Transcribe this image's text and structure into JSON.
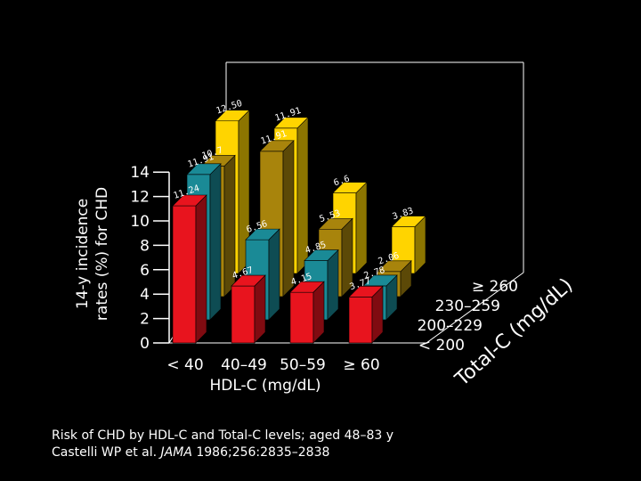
{
  "chart_data": {
    "type": "bar",
    "title": "",
    "ylabel": [
      "14-y incidence",
      "rates (%) for CHD"
    ],
    "xlabel": "HDL-C (mg/dL)",
    "zlabel": "Total-C (mg/dL)",
    "ylim": [
      0,
      14
    ],
    "yticks": [
      "0",
      "2",
      "4",
      "6",
      "8",
      "10",
      "12",
      "14"
    ],
    "categories": [
      "< 40",
      "40–49",
      "50–59",
      "≥ 60"
    ],
    "series": [
      {
        "name": "< 200",
        "color": "#e8141e",
        "values": [
          11.24,
          4.67,
          4.15,
          3.77
        ],
        "labels": [
          "11.24",
          "4.67",
          "4.15",
          "3.77"
        ]
      },
      {
        "name": "200–229",
        "color": "#1a8a96",
        "values": [
          11.91,
          6.56,
          4.85,
          2.78
        ],
        "labels": [
          "11.91",
          "6.56",
          "4.85",
          "2.78"
        ]
      },
      {
        "name": "230–259",
        "color": "#a8840c",
        "values": [
          10.7,
          11.91,
          5.53,
          2.06
        ],
        "labels": [
          "10.7",
          "11.91",
          "5.53",
          "2.06"
        ]
      },
      {
        "name": "≥ 260",
        "color": "#ffd400",
        "values": [
          12.5,
          11.91,
          6.6,
          3.83
        ],
        "labels": [
          "12.50",
          "11.91",
          "6.6",
          "3.83"
        ]
      }
    ]
  },
  "caption": {
    "line1": "Risk of CHD by HDL-C and Total-C levels; aged 48–83 y",
    "line2_prefix": "Castelli WP et al. ",
    "line2_journal": "JAMA",
    "line2_suffix": " 1986;256:2835–2838"
  }
}
